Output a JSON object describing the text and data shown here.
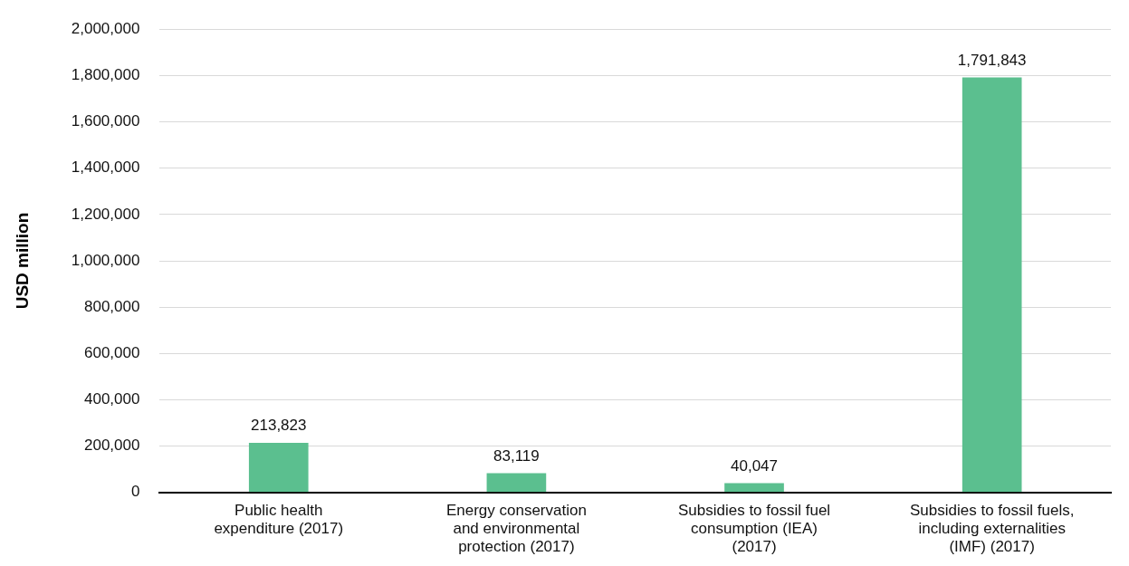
{
  "chart_data": {
    "type": "bar",
    "ylabel": "USD million",
    "categories": [
      "Public health expenditure (2017)",
      "Energy conservation and environmental protection (2017)",
      "Subsidies to fossil fuel consumption (IEA) (2017)",
      "Subsidies to fossil fuels, including externalities (IMF) (2017)"
    ],
    "values": [
      213823,
      83119,
      40047,
      1791843
    ],
    "color": "#5bbf8f",
    "value_labels": [
      "213,823",
      "83,119",
      "40,047",
      "1,791,843"
    ],
    "ylim": [
      0,
      2000000
    ],
    "yticks": [
      {
        "value": 0,
        "label": "0"
      },
      {
        "value": 200000,
        "label": "200,000"
      },
      {
        "value": 400000,
        "label": "400,000"
      },
      {
        "value": 600000,
        "label": "600,000"
      },
      {
        "value": 800000,
        "label": "800,000"
      },
      {
        "value": 1000000,
        "label": "1,000,000"
      },
      {
        "value": 1200000,
        "label": "1,200,000"
      },
      {
        "value": 1400000,
        "label": "1,400,000"
      },
      {
        "value": 1600000,
        "label": "1,600,000"
      },
      {
        "value": 1800000,
        "label": "1,800,000"
      },
      {
        "value": 2000000,
        "label": "2,000,000"
      }
    ],
    "grid": "y",
    "legend": false
  }
}
